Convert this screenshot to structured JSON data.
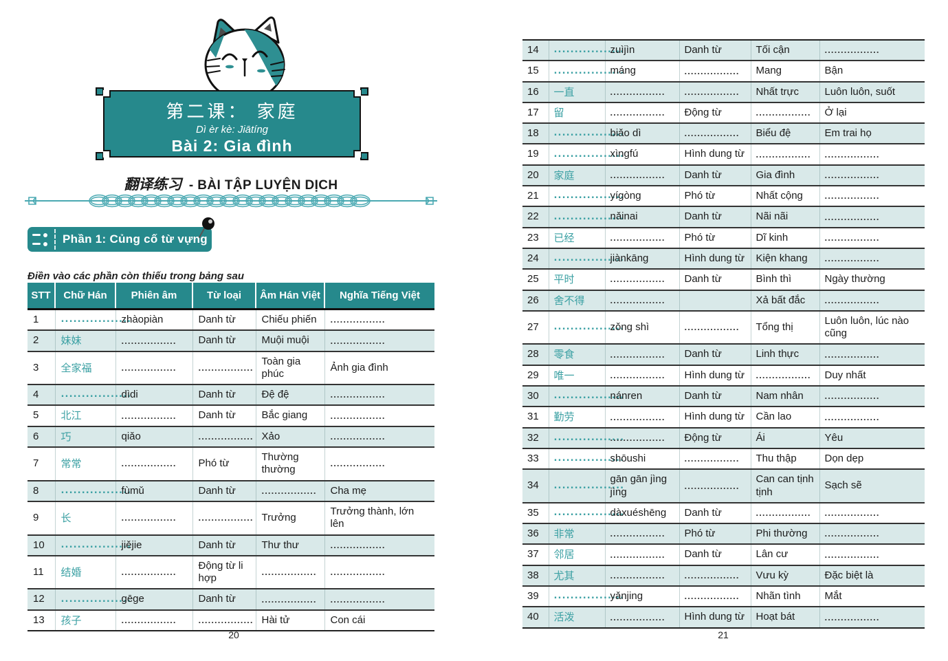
{
  "banner": {
    "title_cn": "第二课：  家庭",
    "pinyin": "Dì èr kè: Jiātíng",
    "title_vi": "Bài 2: Gia đình"
  },
  "section_heading": {
    "cn": "翻译练习",
    "vi": "- BÀI TẬP LUYỆN DỊCH"
  },
  "part1": {
    "label": "Phần 1: Củng cố từ vựng",
    "instruction": "Điền vào các phần còn thiếu trong bảng sau"
  },
  "icons": {
    "ribbon_icon": "bullet-list-icon",
    "pin_icon": "push-pin-icon",
    "cat": "cat-mascot-illustration",
    "divider": "chain-divider"
  },
  "colors": {
    "teal": "#26898C",
    "divider_teal": "#4AA9B2",
    "hanzi_teal": "#3BA0A3",
    "row_shade": "#D9E9E9"
  },
  "table": {
    "headers": [
      "STT",
      "Chữ Hán",
      "Phiên âm",
      "Từ loại",
      "Âm Hán Việt",
      "Nghĩa Tiếng Việt"
    ],
    "rows_left": [
      [
        "1",
        ".................",
        "zhàopiàn",
        "Danh từ",
        "Chiếu phiến",
        "................."
      ],
      [
        "2",
        "妹妹",
        ".................",
        "Danh từ",
        "Muội muội",
        "................."
      ],
      [
        "3",
        "全家福",
        ".................",
        ".................",
        "Toàn gia phúc",
        "Ảnh gia đình"
      ],
      [
        "4",
        ".................",
        "dìdi",
        "Danh từ",
        "Đệ đệ",
        "................."
      ],
      [
        "5",
        "北江",
        ".................",
        "Danh từ",
        "Bắc giang",
        "................."
      ],
      [
        "6",
        "巧",
        "qiǎo",
        ".................",
        "Xảo",
        "................."
      ],
      [
        "7",
        "常常",
        ".................",
        "Phó từ",
        "Thường thường",
        "................."
      ],
      [
        "8",
        ".................",
        "fùmǔ",
        "Danh từ",
        ".................",
        "Cha mẹ"
      ],
      [
        "9",
        "长",
        ".................",
        ".................",
        "Trưởng",
        "Trưởng thành, lớn lên"
      ],
      [
        "10",
        ".................",
        "jiějie",
        "Danh từ",
        "Thư thư",
        "................."
      ],
      [
        "11",
        "结婚",
        ".................",
        "Động từ li hợp",
        ".................",
        "................."
      ],
      [
        "12",
        ".................",
        "gēge",
        "Danh từ",
        ".................",
        "................."
      ],
      [
        "13",
        "孩子",
        ".................",
        ".................",
        "Hài tử",
        "Con cái"
      ]
    ],
    "rows_right": [
      [
        "14",
        ".................",
        "zuìjìn",
        "Danh từ",
        "Tối cận",
        "................."
      ],
      [
        "15",
        ".................",
        "máng",
        ".................",
        "Mang",
        "Bận"
      ],
      [
        "16",
        "一直",
        ".................",
        ".................",
        "Nhất trực",
        "Luôn luôn, suốt"
      ],
      [
        "17",
        "留",
        ".................",
        "Động từ",
        ".................",
        "Ở lại"
      ],
      [
        "18",
        ".................",
        "biǎo dì",
        ".................",
        "Biểu đệ",
        "Em trai họ"
      ],
      [
        "19",
        ".................",
        "xìngfú",
        "Hình dung từ",
        ".................",
        "................."
      ],
      [
        "20",
        "家庭",
        ".................",
        "Danh từ",
        "Gia đình",
        "................."
      ],
      [
        "21",
        ".................",
        "yígòng",
        "Phó từ",
        "Nhất cộng",
        "................."
      ],
      [
        "22",
        ".................",
        "nǎinai",
        "Danh từ",
        "Nãi nãi",
        "................."
      ],
      [
        "23",
        "已经",
        ".................",
        "Phó từ",
        "Dĩ kinh",
        "................."
      ],
      [
        "24",
        ".................",
        "jiànkāng",
        "Hình dung từ",
        "Kiện khang",
        "................."
      ],
      [
        "25",
        "平时",
        ".................",
        "Danh từ",
        "Bình thì",
        "Ngày thường"
      ],
      [
        "26",
        "舍不得",
        ".................",
        "",
        "Xả bất đắc",
        "................."
      ],
      [
        "27",
        ".................",
        "zǒng shì",
        ".................",
        "Tổng thị",
        "Luôn luôn, lúc nào cũng"
      ],
      [
        "28",
        "零食",
        ".................",
        "Danh từ",
        "Linh thực",
        "................."
      ],
      [
        "29",
        "唯一",
        ".................",
        "Hình dung từ",
        ".................",
        "Duy nhất"
      ],
      [
        "30",
        ".................",
        "nánren",
        "Danh từ",
        "Nam nhân",
        "................."
      ],
      [
        "31",
        "勤劳",
        ".................",
        "Hình dung từ",
        "Cần lao",
        "................."
      ],
      [
        "32",
        ".................",
        ".................",
        "Động từ",
        "Ái",
        "Yêu"
      ],
      [
        "33",
        ".................",
        "shōushi",
        ".................",
        "Thu thập",
        "Dọn dẹp"
      ],
      [
        "34",
        ".................",
        "gān gān jìng jìng",
        ".................",
        "Can can tịnh tịnh",
        "Sạch sẽ"
      ],
      [
        "35",
        ".................",
        "dàxuéshēng",
        "Danh từ",
        ".................",
        "................."
      ],
      [
        "36",
        "非常",
        ".................",
        "Phó từ",
        "Phi thường",
        "................."
      ],
      [
        "37",
        "邻居",
        ".................",
        "Danh từ",
        "Lân cư",
        "................."
      ],
      [
        "38",
        "尤其",
        ".................",
        ".................",
        "Vưu kỳ",
        "Đặc biệt là"
      ],
      [
        "39",
        ".................",
        "yǎnjing",
        ".................",
        "Nhãn tình",
        "Mắt"
      ],
      [
        "40",
        "活泼",
        ".................",
        "Hình dung từ",
        "Hoạt bát",
        "................."
      ]
    ]
  },
  "pages": {
    "left_number": "20",
    "right_number": "21"
  }
}
